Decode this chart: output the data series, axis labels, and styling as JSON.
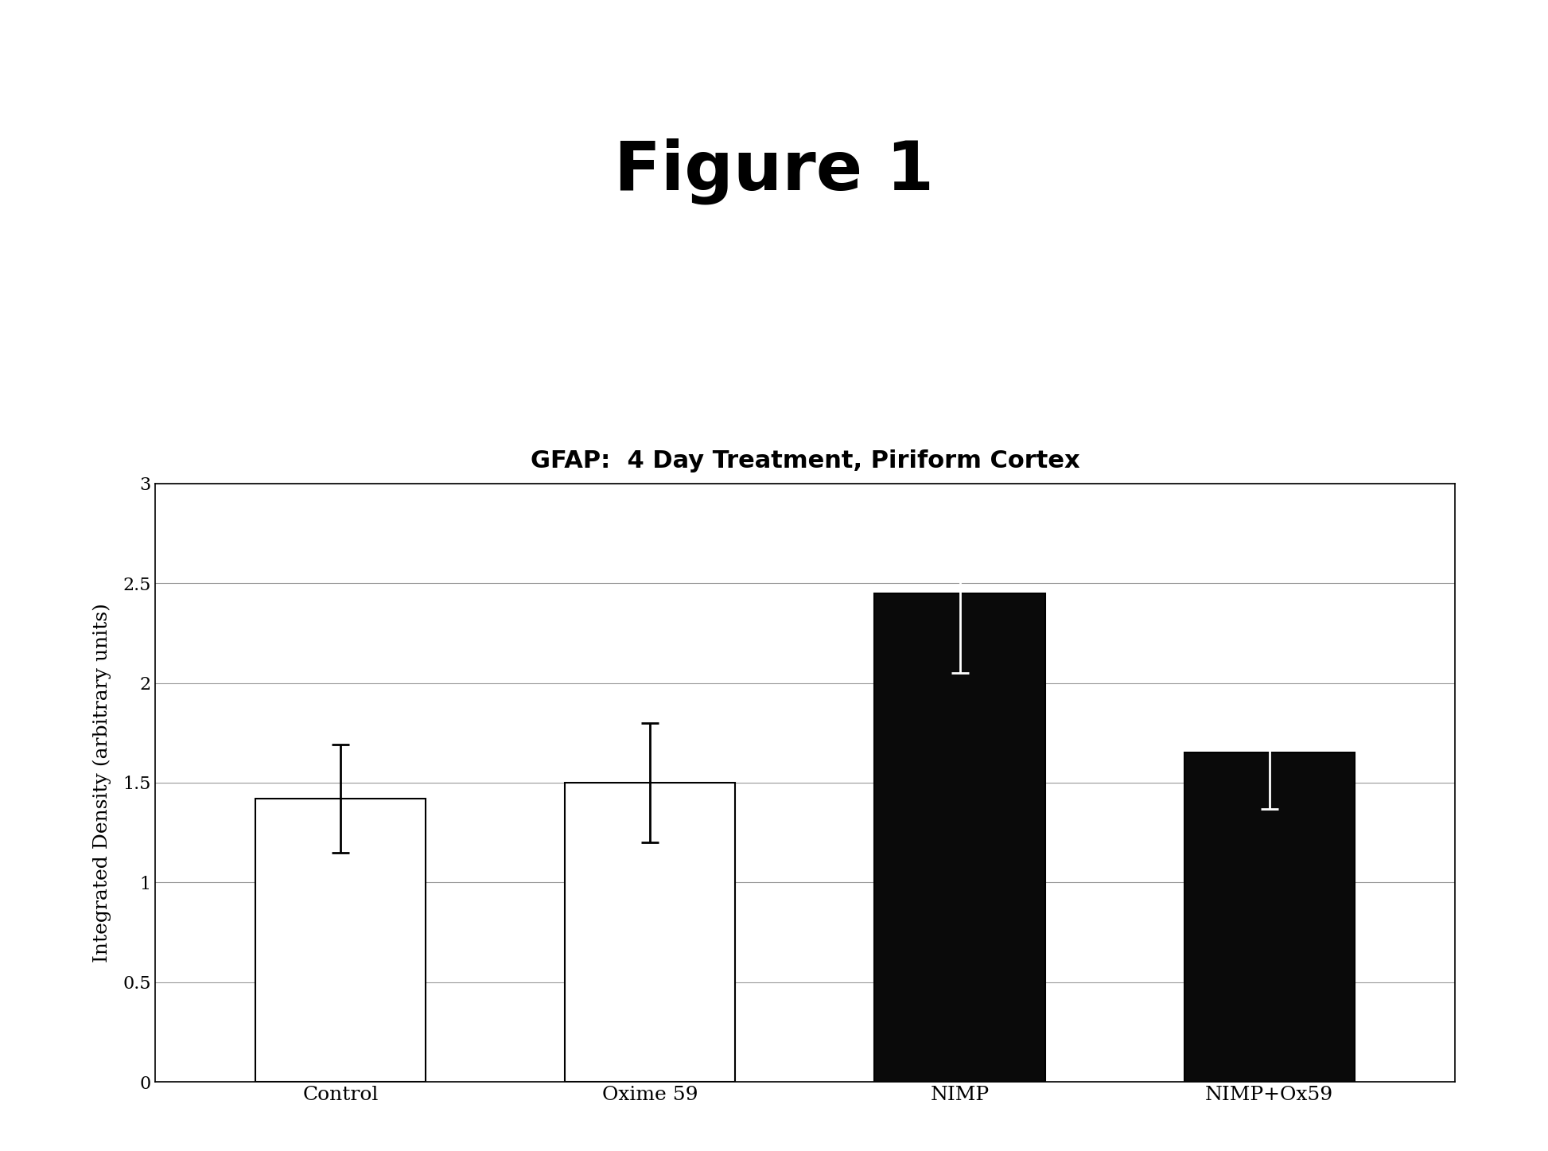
{
  "title": "Figure 1",
  "chart_title": "GFAP:  4 Day Treatment, Piriform Cortex",
  "categories": [
    "Control",
    "Oxime 59",
    "NIMP",
    "NIMP+Ox59"
  ],
  "values": [
    1.42,
    1.5,
    2.45,
    1.65
  ],
  "errors": [
    0.27,
    0.3,
    0.4,
    0.28
  ],
  "bar_colors": [
    "#ffffff",
    "#ffffff",
    "#0a0a0a",
    "#0a0a0a"
  ],
  "bar_edgecolor": "#000000",
  "ylabel": "Integrated Density (arbitrary units)",
  "ylim": [
    0,
    3.0
  ],
  "yticks": [
    0,
    0.5,
    1.0,
    1.5,
    2.0,
    2.5,
    3.0
  ],
  "background_color": "#ffffff",
  "figure_background": "#ffffff",
  "title_fontsize": 62,
  "chart_title_fontsize": 22,
  "ylabel_fontsize": 18,
  "xtick_fontsize": 18,
  "ytick_fontsize": 16,
  "bar_width": 0.55,
  "error_capsize": 8,
  "error_linewidth": 2.0,
  "error_color_white_bar": "#000000",
  "error_color_black_bar": "#ffffff"
}
